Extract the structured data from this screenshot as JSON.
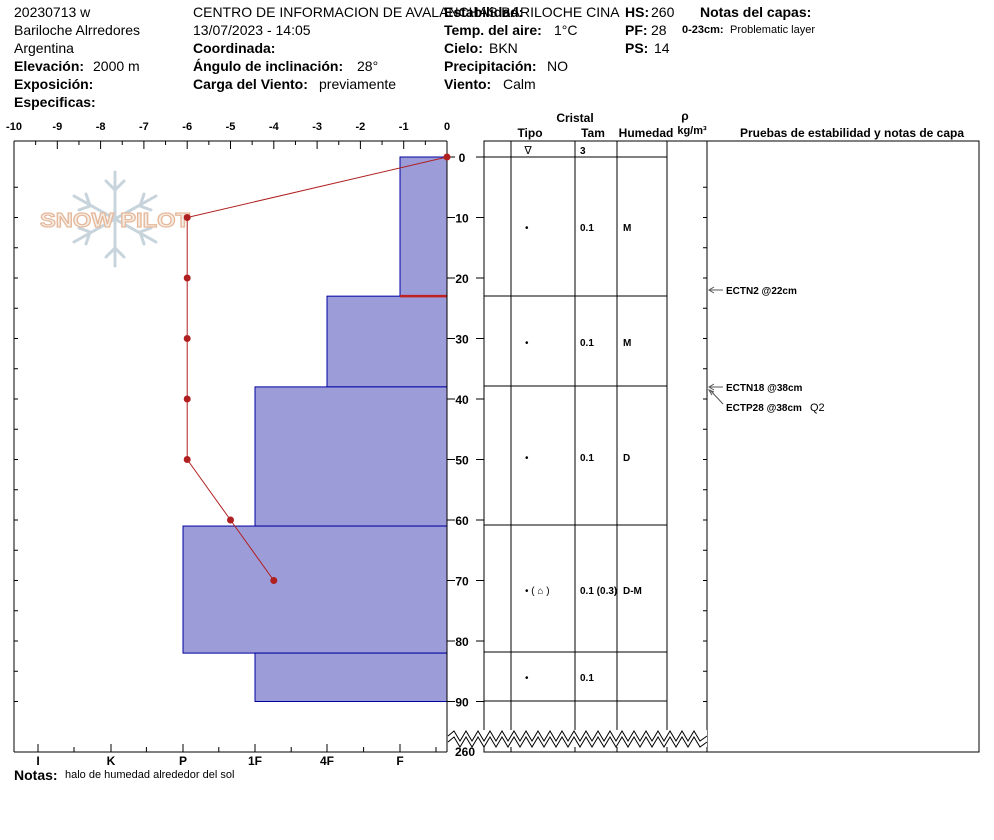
{
  "header": {
    "id": "20230713 w",
    "location": "Bariloche Alrredores",
    "country": "Argentina",
    "elevation_label": "Elevación:",
    "elevation_value": "2000 m",
    "exposure_label": "Exposición:",
    "specifics_label": "Especificas:",
    "organization": "CENTRO DE INFORMACION DE AVALANCHAS BARILOCHE CINA",
    "datetime": "13/07/2023 - 14:05",
    "coordinate_label": "Coordinada:",
    "slope_label": "Ángulo de inclinación:",
    "slope_value": "28°",
    "wind_load_label": "Carga del Viento:",
    "wind_load_value": "previamente",
    "stability_label": "Estabilidad:",
    "air_temp_label": "Temp. del aire:",
    "air_temp_value": "1°C",
    "sky_label": "Cielo:",
    "sky_value": "BKN",
    "precip_label": "Precipitación:",
    "precip_value": "NO",
    "wind_label": "Viento:",
    "wind_value": "Calm",
    "hs_label": "HS:",
    "hs_value": "260",
    "pf_label": "PF:",
    "pf_value": "28",
    "ps_label": "PS:",
    "ps_value": "14",
    "layer_notes_label": "Notas del capas:",
    "layer_note_range": "0-23cm:",
    "layer_note_text": "Problematic layer"
  },
  "watermark": "SNOW PILOT",
  "table": {
    "crystal_label": "Cristal",
    "type_label": "Tipo",
    "size_label": "Tam",
    "humidity_label": "Humedad",
    "density_symbol": "ρ",
    "density_unit": "kg/m³",
    "tests_label": "Pruebas de estabilidad y notas de capa",
    "surface_symbol": "∇",
    "surface_size": "3",
    "rows": [
      {
        "type": "•",
        "size": "0.1",
        "humidity": "M"
      },
      {
        "type": "•",
        "size": "0.1",
        "humidity": "M"
      },
      {
        "type": "•",
        "size": "0.1",
        "humidity": "D"
      },
      {
        "type": "•  ( ⌂ )",
        "size": "0.1 (0.3)",
        "humidity": "D-M"
      },
      {
        "type": "•",
        "size": "0.1",
        "humidity": ""
      }
    ],
    "tests": [
      {
        "label": "ECTN2 @22cm",
        "extra": ""
      },
      {
        "label": "ECTN18 @38cm",
        "extra": ""
      },
      {
        "label": "ECTP28 @38cm",
        "extra": "Q2"
      }
    ]
  },
  "notes": {
    "label": "Notas:",
    "text": "halo de humedad alrededor del sol"
  },
  "chart_data": {
    "type": "bar",
    "orientation": "horizontal-profile",
    "temp_axis": {
      "label": "",
      "ticks": [
        "-10",
        "-9",
        "-8",
        "-7",
        "-6",
        "-5",
        "-4",
        "-3",
        "-2",
        "-1",
        "0"
      ],
      "range": [
        -10,
        0
      ]
    },
    "depth_axis": {
      "ticks": [
        "0",
        "10",
        "20",
        "30",
        "40",
        "50",
        "60",
        "70",
        "80",
        "90"
      ],
      "range": [
        0,
        100
      ],
      "bottom_label": "260"
    },
    "hardness_axis": {
      "ticks": [
        "I",
        "K",
        "P",
        "1F",
        "4F",
        "F"
      ]
    },
    "hardness_layers": [
      {
        "top": 0,
        "bottom": 23,
        "hardness": "F"
      },
      {
        "top": 23,
        "bottom": 38,
        "hardness": "4F-"
      },
      {
        "top": 38,
        "bottom": 61,
        "hardness": "1F"
      },
      {
        "top": 61,
        "bottom": 82,
        "hardness": "P"
      },
      {
        "top": 82,
        "bottom": 90,
        "hardness": "1F"
      }
    ],
    "weak_layer_depth": 23,
    "temperature_profile": [
      {
        "depth": 0,
        "temp": 0
      },
      {
        "depth": 10,
        "temp": -6
      },
      {
        "depth": 20,
        "temp": -6
      },
      {
        "depth": 30,
        "temp": -6
      },
      {
        "depth": 40,
        "temp": -6
      },
      {
        "depth": 50,
        "temp": -6
      },
      {
        "depth": 60,
        "temp": -5
      },
      {
        "depth": 70,
        "temp": -4
      }
    ],
    "colors": {
      "layer_fill": "#9c9cd8",
      "layer_stroke": "#0000a0",
      "temperature": "#b02020",
      "weak_layer": "#c02020"
    }
  }
}
